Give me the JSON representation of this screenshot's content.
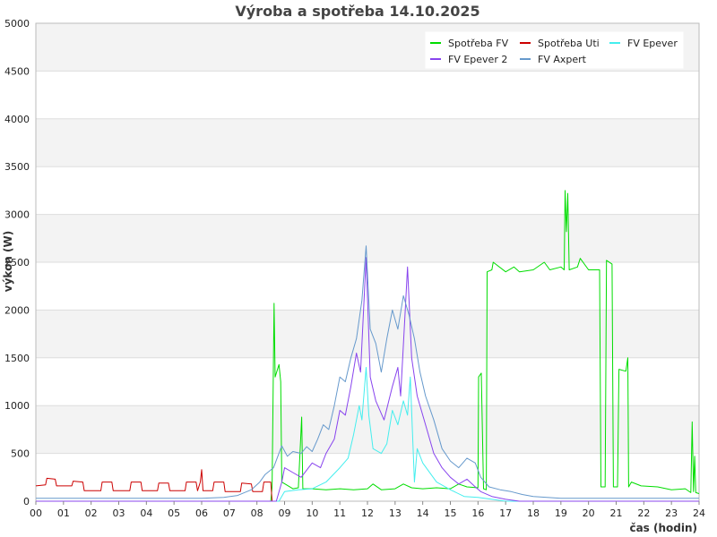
{
  "chart_data": {
    "type": "line",
    "title": "Výroba a spotřeba 14.10.2025",
    "xlabel": "čas (hodin)",
    "ylabel": "výkon (W)",
    "xlim": [
      0,
      24
    ],
    "ylim": [
      0,
      5000
    ],
    "x_ticks": [
      "00",
      "01",
      "02",
      "03",
      "04",
      "05",
      "06",
      "07",
      "08",
      "09",
      "10",
      "11",
      "12",
      "13",
      "14",
      "15",
      "16",
      "17",
      "18",
      "19",
      "20",
      "21",
      "22",
      "23",
      "24"
    ],
    "y_ticks": [
      "0",
      "500",
      "1000",
      "1500",
      "2000",
      "2500",
      "3000",
      "3500",
      "4000",
      "4500",
      "5000"
    ],
    "grid": true,
    "legend_position": "top-right",
    "series": [
      {
        "name": "Spotřeba FV",
        "color": "#00dd00",
        "points": [
          [
            0,
            0
          ],
          [
            8.5,
            0
          ],
          [
            8.55,
            150
          ],
          [
            8.62,
            2070
          ],
          [
            8.66,
            1300
          ],
          [
            8.8,
            1430
          ],
          [
            8.86,
            1250
          ],
          [
            8.9,
            200
          ],
          [
            9.3,
            130
          ],
          [
            9.5,
            140
          ],
          [
            9.62,
            880
          ],
          [
            9.66,
            130
          ],
          [
            10,
            130
          ],
          [
            10.5,
            120
          ],
          [
            11,
            130
          ],
          [
            11.5,
            120
          ],
          [
            12,
            130
          ],
          [
            12.2,
            180
          ],
          [
            12.5,
            120
          ],
          [
            13,
            130
          ],
          [
            13.3,
            180
          ],
          [
            13.6,
            140
          ],
          [
            14,
            130
          ],
          [
            14.5,
            140
          ],
          [
            15,
            130
          ],
          [
            15.3,
            180
          ],
          [
            15.6,
            150
          ],
          [
            16,
            140
          ],
          [
            16.02,
            1300
          ],
          [
            16.12,
            1340
          ],
          [
            16.2,
            130
          ],
          [
            16.3,
            120
          ],
          [
            16.33,
            2400
          ],
          [
            16.5,
            2420
          ],
          [
            16.55,
            2500
          ],
          [
            17,
            2400
          ],
          [
            17.3,
            2450
          ],
          [
            17.5,
            2400
          ],
          [
            18,
            2420
          ],
          [
            18.4,
            2500
          ],
          [
            18.6,
            2420
          ],
          [
            19,
            2450
          ],
          [
            19.12,
            2420
          ],
          [
            19.15,
            3250
          ],
          [
            19.2,
            2820
          ],
          [
            19.25,
            3220
          ],
          [
            19.3,
            2420
          ],
          [
            19.6,
            2450
          ],
          [
            19.7,
            2540
          ],
          [
            20,
            2420
          ],
          [
            20.4,
            2420
          ],
          [
            20.45,
            150
          ],
          [
            20.6,
            150
          ],
          [
            20.65,
            2520
          ],
          [
            20.85,
            2480
          ],
          [
            20.9,
            150
          ],
          [
            21.05,
            150
          ],
          [
            21.1,
            1380
          ],
          [
            21.35,
            1360
          ],
          [
            21.42,
            1500
          ],
          [
            21.45,
            150
          ],
          [
            21.55,
            200
          ],
          [
            21.9,
            160
          ],
          [
            22.5,
            150
          ],
          [
            23,
            120
          ],
          [
            23.5,
            130
          ],
          [
            23.7,
            90
          ],
          [
            23.75,
            830
          ],
          [
            23.8,
            100
          ],
          [
            23.84,
            470
          ],
          [
            23.88,
            90
          ],
          [
            24,
            80
          ]
        ]
      },
      {
        "name": "Spotřeba Uti",
        "color": "#cc0000",
        "points": [
          [
            0,
            160
          ],
          [
            0.35,
            170
          ],
          [
            0.4,
            240
          ],
          [
            0.7,
            230
          ],
          [
            0.75,
            160
          ],
          [
            1.3,
            160
          ],
          [
            1.35,
            210
          ],
          [
            1.7,
            200
          ],
          [
            1.75,
            110
          ],
          [
            2.35,
            110
          ],
          [
            2.4,
            200
          ],
          [
            2.75,
            200
          ],
          [
            2.8,
            110
          ],
          [
            3.4,
            110
          ],
          [
            3.45,
            200
          ],
          [
            3.8,
            200
          ],
          [
            3.85,
            110
          ],
          [
            4.4,
            110
          ],
          [
            4.45,
            190
          ],
          [
            4.8,
            190
          ],
          [
            4.85,
            110
          ],
          [
            5.4,
            110
          ],
          [
            5.45,
            200
          ],
          [
            5.8,
            200
          ],
          [
            5.85,
            110
          ],
          [
            5.95,
            200
          ],
          [
            6,
            330
          ],
          [
            6.05,
            110
          ],
          [
            6.4,
            110
          ],
          [
            6.45,
            200
          ],
          [
            6.8,
            200
          ],
          [
            6.85,
            100
          ],
          [
            7.4,
            100
          ],
          [
            7.45,
            190
          ],
          [
            7.8,
            180
          ],
          [
            7.85,
            100
          ],
          [
            8.2,
            100
          ],
          [
            8.25,
            200
          ],
          [
            8.5,
            200
          ],
          [
            8.55,
            0
          ]
        ]
      },
      {
        "name": "FV Epever",
        "color": "#44eeee",
        "points": [
          [
            0,
            0
          ],
          [
            8.8,
            0
          ],
          [
            9,
            100
          ],
          [
            9.5,
            120
          ],
          [
            10,
            130
          ],
          [
            10.5,
            200
          ],
          [
            11,
            350
          ],
          [
            11.3,
            450
          ],
          [
            11.5,
            700
          ],
          [
            11.7,
            1000
          ],
          [
            11.8,
            850
          ],
          [
            11.95,
            1400
          ],
          [
            12.05,
            900
          ],
          [
            12.2,
            550
          ],
          [
            12.5,
            500
          ],
          [
            12.7,
            600
          ],
          [
            12.9,
            950
          ],
          [
            13.1,
            800
          ],
          [
            13.3,
            1050
          ],
          [
            13.45,
            900
          ],
          [
            13.55,
            1300
          ],
          [
            13.7,
            200
          ],
          [
            13.8,
            550
          ],
          [
            14,
            400
          ],
          [
            14.5,
            200
          ],
          [
            15,
            120
          ],
          [
            15.5,
            50
          ],
          [
            16,
            40
          ],
          [
            16.5,
            20
          ],
          [
            17,
            0
          ],
          [
            24,
            0
          ]
        ]
      },
      {
        "name": "FV Epever 2",
        "color": "#8844ee",
        "points": [
          [
            0,
            0
          ],
          [
            8.7,
            0
          ],
          [
            8.9,
            200
          ],
          [
            9,
            350
          ],
          [
            9.3,
            300
          ],
          [
            9.6,
            250
          ],
          [
            10,
            400
          ],
          [
            10.3,
            350
          ],
          [
            10.5,
            500
          ],
          [
            10.8,
            650
          ],
          [
            11,
            950
          ],
          [
            11.2,
            900
          ],
          [
            11.4,
            1200
          ],
          [
            11.6,
            1550
          ],
          [
            11.75,
            1350
          ],
          [
            11.95,
            2550
          ],
          [
            12.1,
            1300
          ],
          [
            12.3,
            1050
          ],
          [
            12.6,
            850
          ],
          [
            12.9,
            1200
          ],
          [
            13.1,
            1400
          ],
          [
            13.2,
            1100
          ],
          [
            13.35,
            1900
          ],
          [
            13.45,
            2450
          ],
          [
            13.6,
            1500
          ],
          [
            13.8,
            1100
          ],
          [
            14.1,
            800
          ],
          [
            14.4,
            500
          ],
          [
            14.7,
            350
          ],
          [
            15,
            250
          ],
          [
            15.3,
            180
          ],
          [
            15.6,
            230
          ],
          [
            15.9,
            150
          ],
          [
            16.1,
            100
          ],
          [
            16.5,
            50
          ],
          [
            17,
            20
          ],
          [
            17.5,
            0
          ],
          [
            24,
            0
          ]
        ]
      },
      {
        "name": "FV Axpert",
        "color": "#6699cc",
        "points": [
          [
            0,
            30
          ],
          [
            1,
            30
          ],
          [
            2,
            30
          ],
          [
            3,
            30
          ],
          [
            4,
            30
          ],
          [
            5,
            30
          ],
          [
            6,
            30
          ],
          [
            6.8,
            40
          ],
          [
            7.3,
            60
          ],
          [
            7.8,
            120
          ],
          [
            8.1,
            200
          ],
          [
            8.3,
            280
          ],
          [
            8.6,
            350
          ],
          [
            8.9,
            580
          ],
          [
            9.1,
            470
          ],
          [
            9.3,
            520
          ],
          [
            9.6,
            500
          ],
          [
            9.8,
            570
          ],
          [
            10,
            520
          ],
          [
            10.2,
            650
          ],
          [
            10.4,
            800
          ],
          [
            10.6,
            750
          ],
          [
            10.8,
            1000
          ],
          [
            11.0,
            1300
          ],
          [
            11.2,
            1250
          ],
          [
            11.4,
            1500
          ],
          [
            11.6,
            1700
          ],
          [
            11.8,
            2100
          ],
          [
            11.95,
            2670
          ],
          [
            12.1,
            1800
          ],
          [
            12.3,
            1650
          ],
          [
            12.5,
            1350
          ],
          [
            12.7,
            1700
          ],
          [
            12.9,
            2000
          ],
          [
            13.1,
            1800
          ],
          [
            13.3,
            2150
          ],
          [
            13.5,
            1950
          ],
          [
            13.7,
            1700
          ],
          [
            13.9,
            1350
          ],
          [
            14.1,
            1100
          ],
          [
            14.4,
            850
          ],
          [
            14.7,
            550
          ],
          [
            15,
            420
          ],
          [
            15.3,
            350
          ],
          [
            15.6,
            450
          ],
          [
            15.9,
            400
          ],
          [
            16.1,
            250
          ],
          [
            16.4,
            150
          ],
          [
            16.8,
            120
          ],
          [
            17.2,
            100
          ],
          [
            17.6,
            70
          ],
          [
            18,
            50
          ],
          [
            18.5,
            40
          ],
          [
            19,
            30
          ],
          [
            20,
            30
          ],
          [
            22,
            30
          ],
          [
            24,
            30
          ]
        ]
      }
    ]
  }
}
